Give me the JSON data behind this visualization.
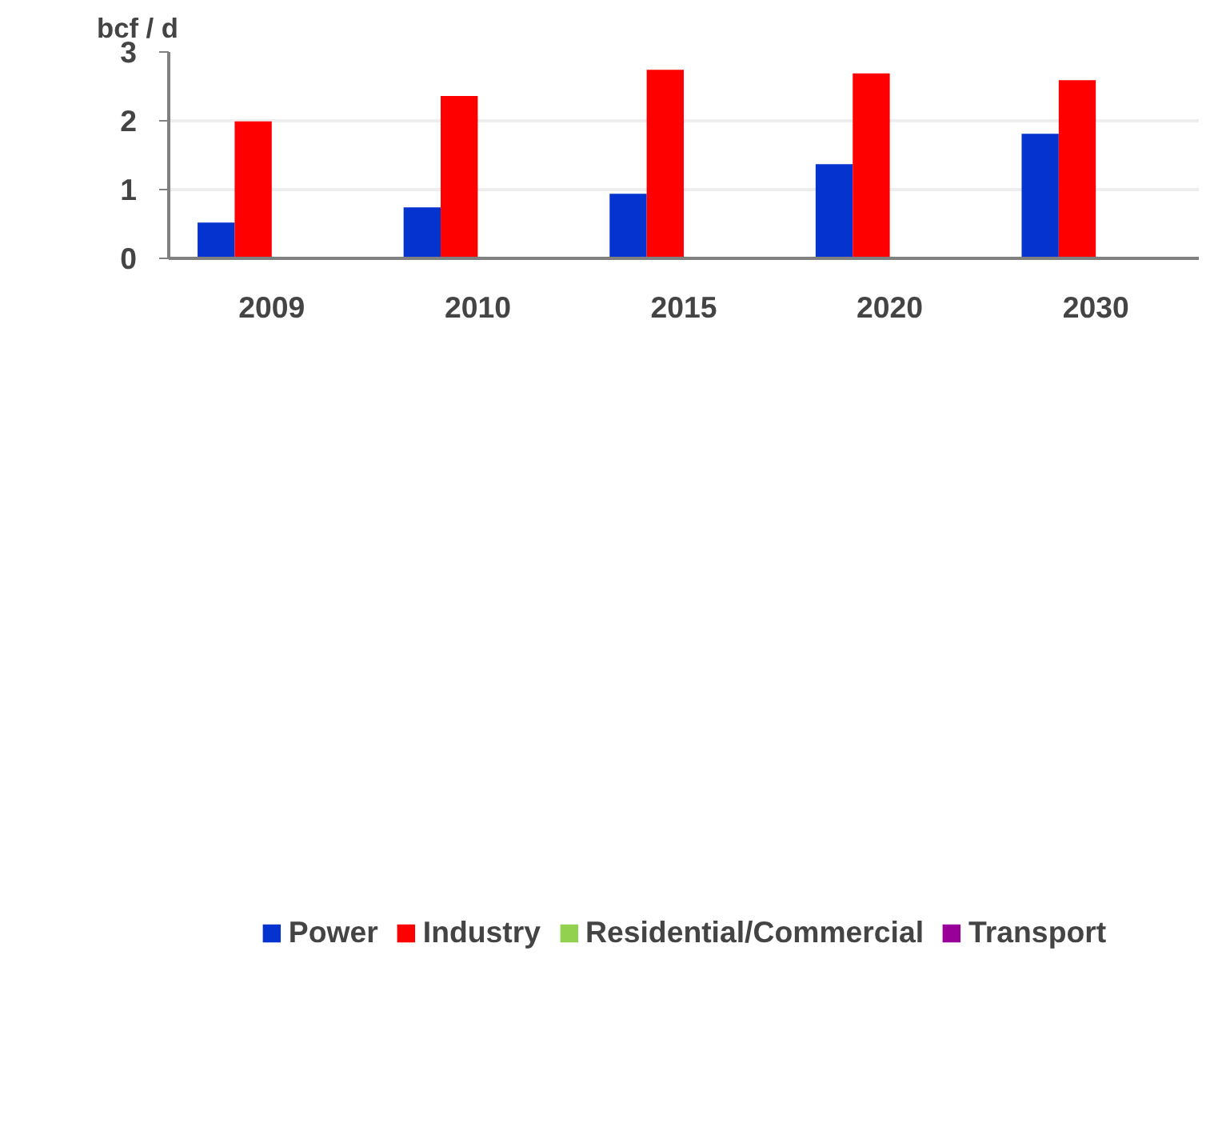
{
  "chart_data": {
    "type": "bar",
    "ylabel": "bcf / d",
    "categories": [
      "2009",
      "2010",
      "2015",
      "2020",
      "2030"
    ],
    "series": [
      {
        "name": "Power",
        "color": "#0433d0",
        "values": [
          0.52,
          0.74,
          0.94,
          1.37,
          1.81
        ]
      },
      {
        "name": "Industry",
        "color": "#ff0000",
        "values": [
          1.99,
          2.36,
          2.74,
          2.69,
          2.59
        ]
      },
      {
        "name": "Residential/Commercial",
        "color": "#92d050",
        "values": [
          0,
          0,
          0.01,
          0.01,
          0.01
        ]
      },
      {
        "name": "Transport",
        "color": "#990099",
        "values": [
          0,
          0,
          0,
          0,
          0
        ]
      }
    ],
    "ylim": [
      0,
      3
    ],
    "yticks": [
      0,
      1,
      2,
      3
    ],
    "grid": "y",
    "legend": "bottom"
  }
}
